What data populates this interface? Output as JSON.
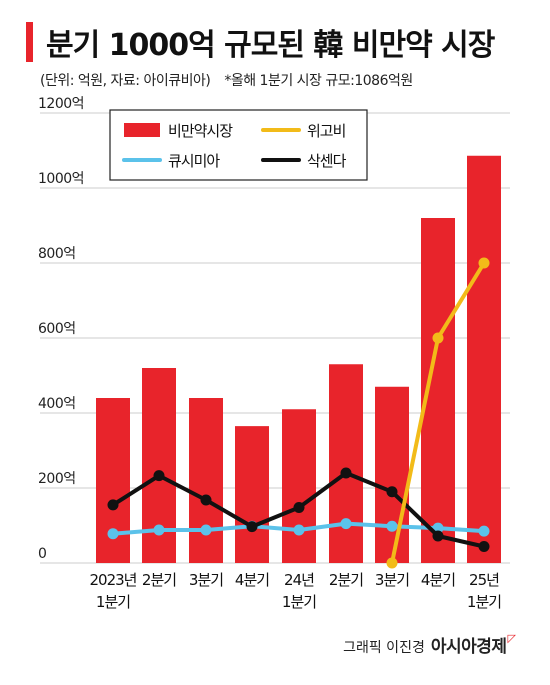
{
  "title": "분기 1000억 규모된 韓 비만약 시장",
  "subtitle": "(단위: 억원, 자료: 아이큐비아)",
  "note": "*올해 1분기 시장 규모:1086억원",
  "credit": {
    "byline": "그래픽 이진경",
    "brand": "아시아경제"
  },
  "colors": {
    "market": "#e8242b",
    "wegovy": "#f2bb19",
    "qsymia": "#5bc2ea",
    "saxenda": "#111111",
    "grid": "#cccccc"
  },
  "chart_data": {
    "type": "bar",
    "categories": [
      [
        "2023년",
        "1분기"
      ],
      [
        "2분기"
      ],
      [
        "3분기"
      ],
      [
        "4분기"
      ],
      [
        "24년",
        "1분기"
      ],
      [
        "2분기"
      ],
      [
        "3분기"
      ],
      [
        "4분기"
      ],
      [
        "25년",
        "1분기"
      ]
    ],
    "ylim": [
      0,
      1200
    ],
    "yticks": [
      "0",
      "200억",
      "400억",
      "600억",
      "800억",
      "1000억",
      "1200억"
    ],
    "grid": true,
    "legend_position": "top-left",
    "series": [
      {
        "name": "비만약시장",
        "type": "bar",
        "values": [
          440,
          520,
          440,
          365,
          410,
          530,
          470,
          920,
          1086
        ]
      },
      {
        "name": "위고비",
        "type": "line",
        "values": [
          null,
          null,
          null,
          null,
          null,
          null,
          0,
          600,
          800
        ]
      },
      {
        "name": "큐시미아",
        "type": "line",
        "values": [
          78,
          88,
          88,
          98,
          88,
          105,
          98,
          93,
          85
        ]
      },
      {
        "name": "삭센다",
        "type": "line",
        "values": [
          155,
          233,
          168,
          97,
          148,
          240,
          190,
          72,
          44
        ]
      }
    ]
  }
}
